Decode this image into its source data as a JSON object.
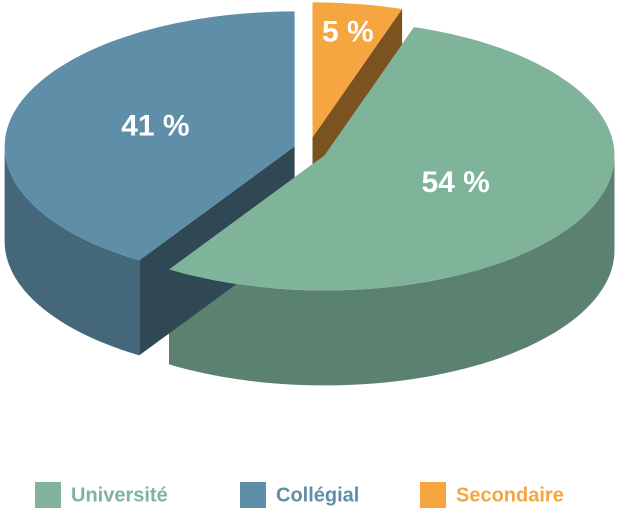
{
  "chart_data": {
    "type": "pie",
    "categories": [
      "Université",
      "Collégial",
      "Secondaire"
    ],
    "values": [
      54,
      41,
      5
    ],
    "value_labels": [
      "54 %",
      "41 %",
      "5 %"
    ],
    "colors": [
      "#7fb49b",
      "#5f8fa8",
      "#f5a640"
    ]
  }
}
